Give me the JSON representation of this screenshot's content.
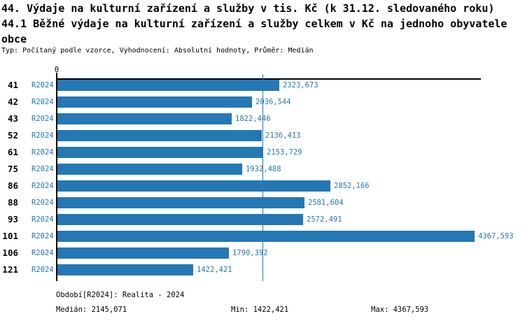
{
  "header": {
    "title_line1": "44. Výdaje na kulturní zařízení a služby v tis. Kč (k 31.12. sledovaného roku)",
    "title_line2": "44.1 Běžné výdaje na kulturní zařízení a služby celkem v Kč na jednoho obyvatele",
    "title_line3": "obce",
    "meta": "Typ: Počítaný podle vzorce, Vyhodnocení: Absolutní hodnoty, Průměr: Medián"
  },
  "chart_data": {
    "type": "bar",
    "orientation": "horizontal",
    "title": "44.1 Běžné výdaje na kulturní zařízení a služby celkem v Kč na jednoho obyvatele obce",
    "categories": [
      "41",
      "42",
      "43",
      "52",
      "61",
      "75",
      "86",
      "88",
      "93",
      "101",
      "106",
      "121"
    ],
    "series": [
      {
        "name": "R2024",
        "values": [
          2323.673,
          2036.544,
          1822.446,
          2136.413,
          2153.729,
          1932.488,
          2852.166,
          2581.604,
          2572.491,
          4367.593,
          1790.392,
          1422.421
        ],
        "value_labels": [
          "2323,673",
          "2036,544",
          "1822,446",
          "2136,413",
          "2153,729",
          "1932,488",
          "2852,166",
          "2581,604",
          "2572,491",
          "4367,593",
          "1790,392",
          "1422,421"
        ]
      }
    ],
    "axis_zero_label": "0",
    "xlim": [
      0,
      4430
    ],
    "grid": false,
    "median_value": 2145.071,
    "min_value": 1422.421,
    "max_value": 4367.593,
    "bar_color": "#2478b4",
    "median_line_color": "#2478b4",
    "text_blue": "#2478b4"
  },
  "footer": {
    "period": "Období[R2024]: Realita - 2024",
    "median": "Medián: 2145,071",
    "min": "Min: 1422,421",
    "max": "Max: 4367,593"
  }
}
